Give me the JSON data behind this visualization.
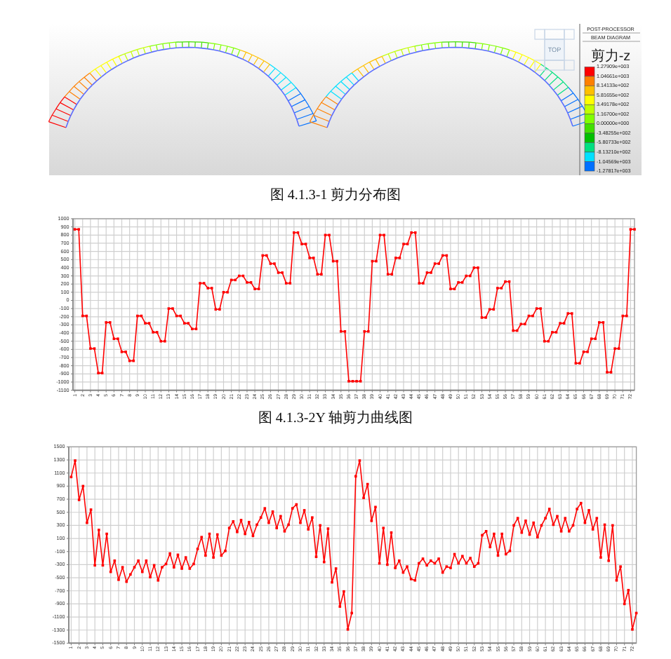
{
  "chart_data": [
    {
      "type": "other",
      "annotations": [
        "POST-PROCESSOR",
        "BEAM DIAGRAM",
        "TOP",
        "图 4.1.3-1 剪力分布图"
      ],
      "legend_title": "剪力-z",
      "categories": [
        "1.27909e+003",
        "1.04661e+003",
        "8.14133e+002",
        "5.81655e+002",
        "3.49178e+002",
        "1.16700e+002",
        "0.00000e+000",
        "-3.48255e+002",
        "-5.80733e+002",
        "-8.13210e+002",
        "-1.04569e+003",
        "-1.27817e+003"
      ],
      "colors": [
        "#ff0000",
        "#ff8000",
        "#ffc000",
        "#ffff00",
        "#c0ff00",
        "#80ff00",
        "#40e000",
        "#00c000",
        "#00e080",
        "#00e0ff",
        "#0070ff"
      ]
    },
    {
      "type": "line",
      "categories": [
        "1",
        null,
        "2",
        null,
        "3",
        null,
        "4",
        null,
        "5",
        null,
        "6",
        null,
        "7",
        null,
        "8",
        null,
        "9",
        null,
        "10",
        null,
        "11",
        null,
        "12",
        null,
        "13",
        null,
        "14",
        null,
        "15",
        null,
        "16",
        null,
        "17",
        null,
        "18",
        null,
        "19",
        null,
        "20",
        null,
        "21",
        null,
        "22",
        null,
        "23",
        null,
        "24",
        null,
        "25",
        null,
        "26",
        null,
        "27",
        null,
        "28",
        null,
        "29",
        null,
        "30",
        null,
        "31",
        null,
        "32",
        null,
        "33",
        null,
        "34",
        null,
        "35",
        null,
        "36",
        null,
        "37",
        null,
        "38",
        null,
        "39",
        null,
        "40",
        null,
        "41",
        null,
        "42",
        null,
        "43",
        null,
        "44",
        null,
        "45",
        null,
        "46",
        null,
        "47",
        null,
        "48",
        null,
        "49",
        null,
        "50",
        null,
        "51",
        null,
        "52",
        null,
        "53",
        null,
        "54",
        null,
        "55",
        null,
        "56",
        null,
        "57",
        null,
        "58",
        null,
        "59",
        null,
        "60",
        null,
        "61",
        null,
        "62",
        null,
        "63",
        null,
        "64",
        null,
        "65",
        null,
        "66",
        null,
        "67",
        null,
        "68",
        null,
        "69",
        null,
        "70",
        null,
        "71",
        null,
        "72",
        null
      ],
      "series": [
        {
          "color": "#ff0000",
          "values": [
            870,
            870,
            -190,
            -190,
            -590,
            -590,
            -890,
            -890,
            -270,
            -270,
            -470,
            -470,
            -630,
            -630,
            -740,
            -740,
            -190,
            -190,
            -280,
            -280,
            -390,
            -390,
            -500,
            -500,
            -100,
            -100,
            -190,
            -190,
            -280,
            -280,
            -350,
            -350,
            210,
            210,
            150,
            150,
            -110,
            -110,
            100,
            100,
            250,
            250,
            300,
            300,
            220,
            220,
            140,
            140,
            550,
            550,
            450,
            450,
            340,
            340,
            210,
            210,
            830,
            830,
            690,
            690,
            520,
            520,
            320,
            320,
            800,
            800,
            480,
            480,
            -380,
            -380,
            -990,
            -990,
            -990,
            -990,
            -380,
            -380,
            480,
            480,
            800,
            800,
            320,
            320,
            520,
            520,
            690,
            690,
            830,
            830,
            210,
            210,
            340,
            340,
            450,
            450,
            550,
            550,
            140,
            140,
            220,
            220,
            300,
            300,
            400,
            400,
            -210,
            -210,
            -110,
            -110,
            150,
            150,
            230,
            230,
            -370,
            -370,
            -290,
            -290,
            -190,
            -190,
            -100,
            -100,
            -500,
            -500,
            -390,
            -390,
            -280,
            -280,
            -160,
            -160,
            -770,
            -770,
            -630,
            -630,
            -470,
            -470,
            -270,
            -270,
            -880,
            -880,
            -590,
            -590,
            -190,
            -190,
            870,
            870
          ]
        }
      ],
      "ylim": [
        -1100,
        1000
      ],
      "yticks": [
        1000,
        900,
        800,
        700,
        600,
        500,
        400,
        300,
        200,
        100,
        0,
        -100,
        -200,
        -300,
        -400,
        -500,
        -600,
        -700,
        -800,
        -900,
        -1000,
        -1100
      ],
      "grid": true,
      "marker": "square",
      "line_style": "solid",
      "annotations": [
        "图 4.1.3-2Y 轴剪力曲线图"
      ]
    },
    {
      "type": "line",
      "categories": [
        "1",
        null,
        "2",
        null,
        "3",
        null,
        "4",
        null,
        "5",
        null,
        "6",
        null,
        "7",
        null,
        "8",
        null,
        "9",
        null,
        "10",
        null,
        "11",
        null,
        "12",
        null,
        "13",
        null,
        "14",
        null,
        "15",
        null,
        "16",
        null,
        "17",
        null,
        "18",
        null,
        "19",
        null,
        "20",
        null,
        "21",
        null,
        "22",
        null,
        "23",
        null,
        "24",
        null,
        "25",
        null,
        "26",
        null,
        "27",
        null,
        "28",
        null,
        "29",
        null,
        "30",
        null,
        "31",
        null,
        "32",
        null,
        "33",
        null,
        "34",
        null,
        "35",
        null,
        "36",
        null,
        "37",
        null,
        "38",
        null,
        "39",
        null,
        "40",
        null,
        "41",
        null,
        "42",
        null,
        "43",
        null,
        "44",
        null,
        "45",
        null,
        "46",
        null,
        "47",
        null,
        "48",
        null,
        "49",
        null,
        "50",
        null,
        "51",
        null,
        "52",
        null,
        "53",
        null,
        "54",
        null,
        "55",
        null,
        "56",
        null,
        "57",
        null,
        "58",
        null,
        "59",
        null,
        "60",
        null,
        "61",
        null,
        "62",
        null,
        "63",
        null,
        "64",
        null,
        "65",
        null,
        "66",
        null,
        "67",
        null,
        "68",
        null,
        "69",
        null,
        "70",
        null,
        "71",
        null,
        "72",
        null
      ],
      "series": [
        {
          "color": "#ff0000",
          "values": [
            1040,
            1290,
            690,
            900,
            340,
            540,
            -310,
            230,
            -310,
            170,
            -410,
            -240,
            -530,
            -340,
            -560,
            -450,
            -340,
            -240,
            -410,
            -240,
            -490,
            -310,
            -540,
            -340,
            -290,
            -130,
            -340,
            -150,
            -360,
            -190,
            -360,
            -290,
            -60,
            120,
            -160,
            170,
            -190,
            160,
            -160,
            -90,
            260,
            360,
            200,
            380,
            170,
            350,
            140,
            310,
            420,
            560,
            340,
            510,
            260,
            440,
            210,
            310,
            560,
            620,
            340,
            530,
            240,
            420,
            -180,
            300,
            -260,
            250,
            -570,
            -360,
            -940,
            -710,
            -1290,
            -1040,
            1050,
            1290,
            720,
            930,
            370,
            580,
            -280,
            260,
            -300,
            190,
            -350,
            -240,
            -420,
            -330,
            -520,
            -540,
            -280,
            -210,
            -310,
            -240,
            -280,
            -210,
            -420,
            -330,
            -350,
            -140,
            -280,
            -170,
            -280,
            -200,
            -330,
            -280,
            150,
            210,
            -30,
            170,
            -160,
            170,
            -140,
            -90,
            300,
            410,
            190,
            370,
            160,
            340,
            120,
            300,
            410,
            550,
            310,
            440,
            210,
            410,
            210,
            300,
            550,
            640,
            340,
            530,
            240,
            410,
            -190,
            310,
            -240,
            300,
            -540,
            -330,
            -900,
            -690,
            -1290,
            -1040
          ]
        }
      ],
      "ylim": [
        -1500,
        1500
      ],
      "yticks": [
        1500,
        1300,
        1100,
        900,
        700,
        500,
        300,
        100,
        -100,
        -300,
        -500,
        -700,
        -900,
        -1100,
        -1300,
        -1500
      ],
      "grid": true,
      "marker": "square",
      "line_style": "solid"
    }
  ]
}
